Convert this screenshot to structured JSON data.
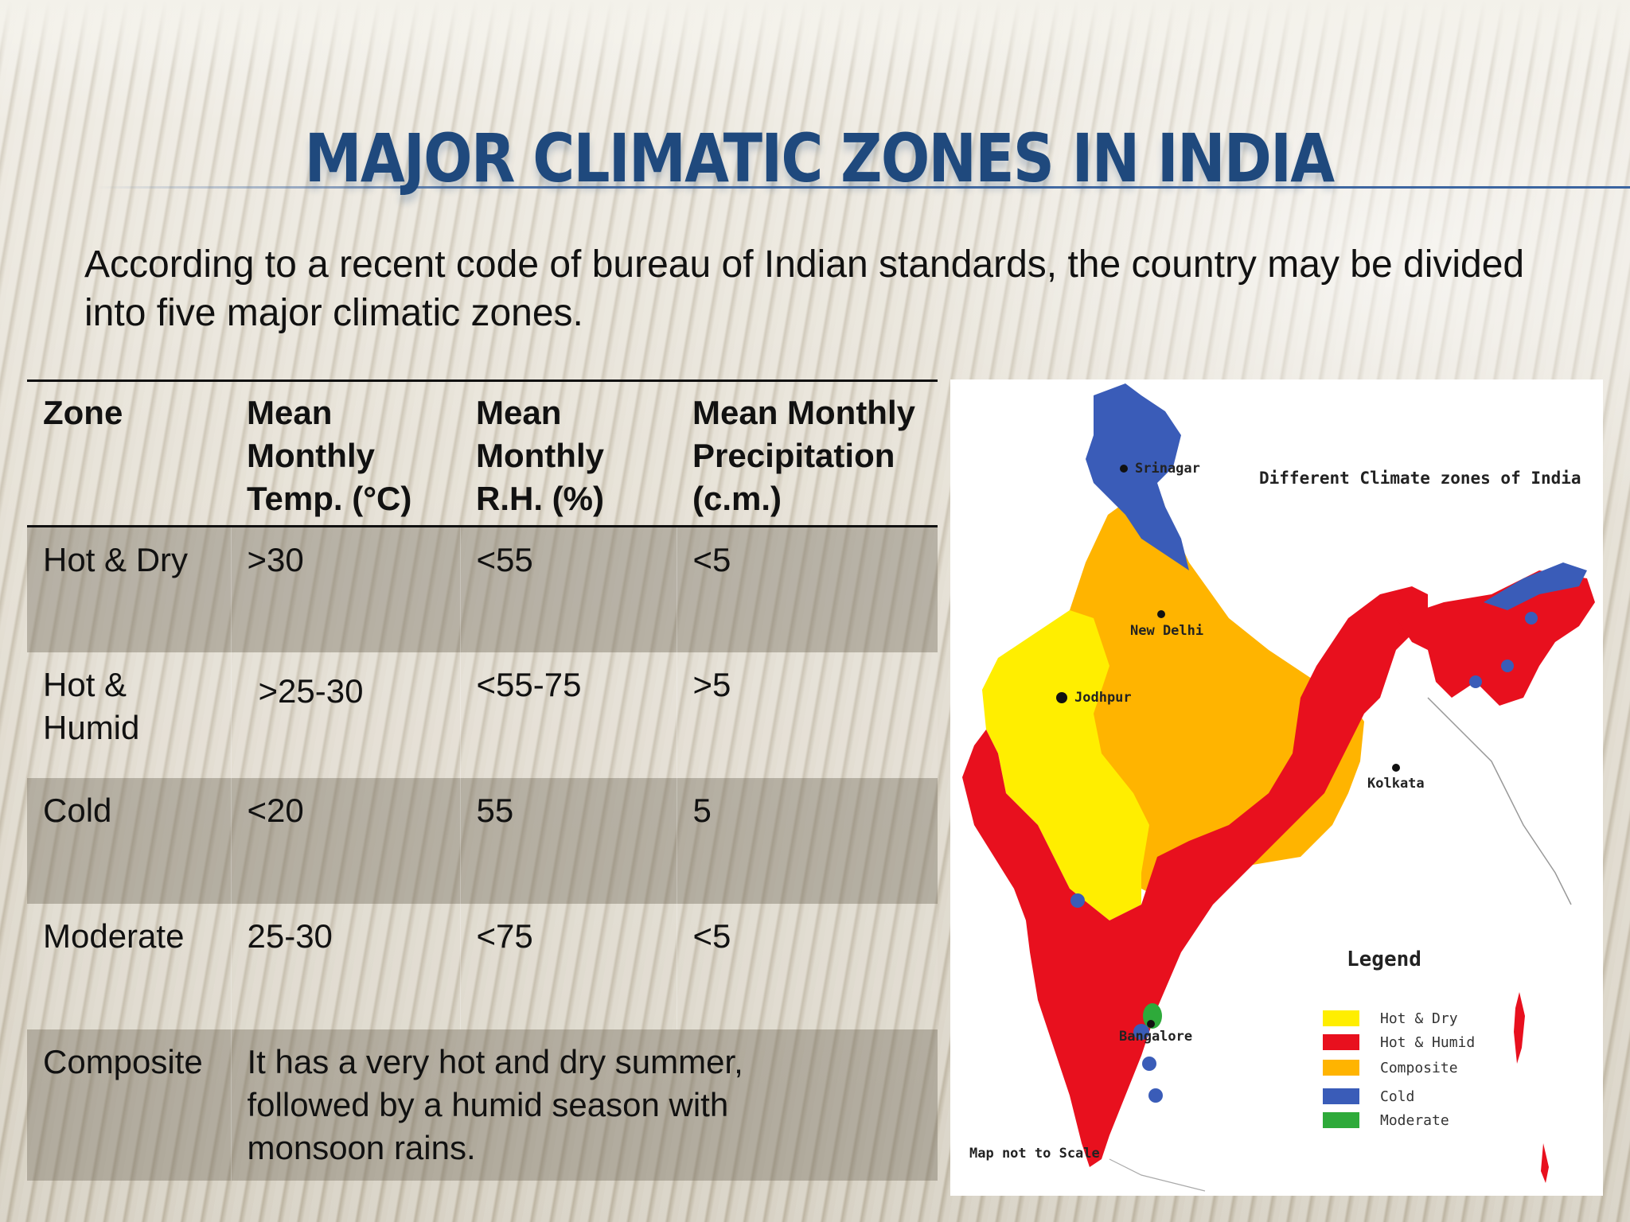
{
  "slide": {
    "title": "MAJOR CLIMATIC ZONES IN INDIA",
    "intro": "According to a recent code of bureau of Indian standards, the country may be divided into five major climatic zones."
  },
  "table": {
    "headers": [
      "Zone",
      "Mean Monthly Temp. (°C)",
      "Mean Monthly R.H. (%)",
      "Mean Monthly Precipitation (c.m.)"
    ],
    "rows": [
      {
        "zone": "Hot & Dry",
        "temp": ">30",
        "rh": "<55",
        "precip": "<5"
      },
      {
        "zone": "Hot & Humid",
        "temp": ">25-30",
        "rh": "<55-75",
        "precip": ">5"
      },
      {
        "zone": "Cold",
        "temp": "<20",
        "rh": "55",
        "precip": "5"
      },
      {
        "zone": "Moderate",
        "temp": "25-30",
        "rh": "<75",
        "precip": "<5"
      },
      {
        "zone": "Composite",
        "description": "It has a very hot and dry summer, followed by a humid season with monsoon rains."
      }
    ]
  },
  "map": {
    "title": "Different Climate zones of India",
    "cities": {
      "srinagar": "Srinagar",
      "new_delhi": "New Delhi",
      "jodhpur": "Jodhpur",
      "kolkata": "Kolkata",
      "bangalore": "Bangalore"
    },
    "legend": {
      "title": "Legend",
      "items": [
        {
          "label": "Hot & Dry",
          "color": "#ffee00"
        },
        {
          "label": "Hot & Humid",
          "color": "#e8101e"
        },
        {
          "label": "Composite",
          "color": "#ffb400"
        },
        {
          "label": "Cold",
          "color": "#3a5cb8"
        },
        {
          "label": "Moderate",
          "color": "#2eaa3a"
        }
      ]
    },
    "note": "Map not to Scale"
  },
  "colors": {
    "title": "#1f497d",
    "hot_dry": "#ffee00",
    "hot_humid": "#e8101e",
    "composite": "#ffb400",
    "cold": "#3a5cb8",
    "moderate": "#2eaa3a"
  }
}
